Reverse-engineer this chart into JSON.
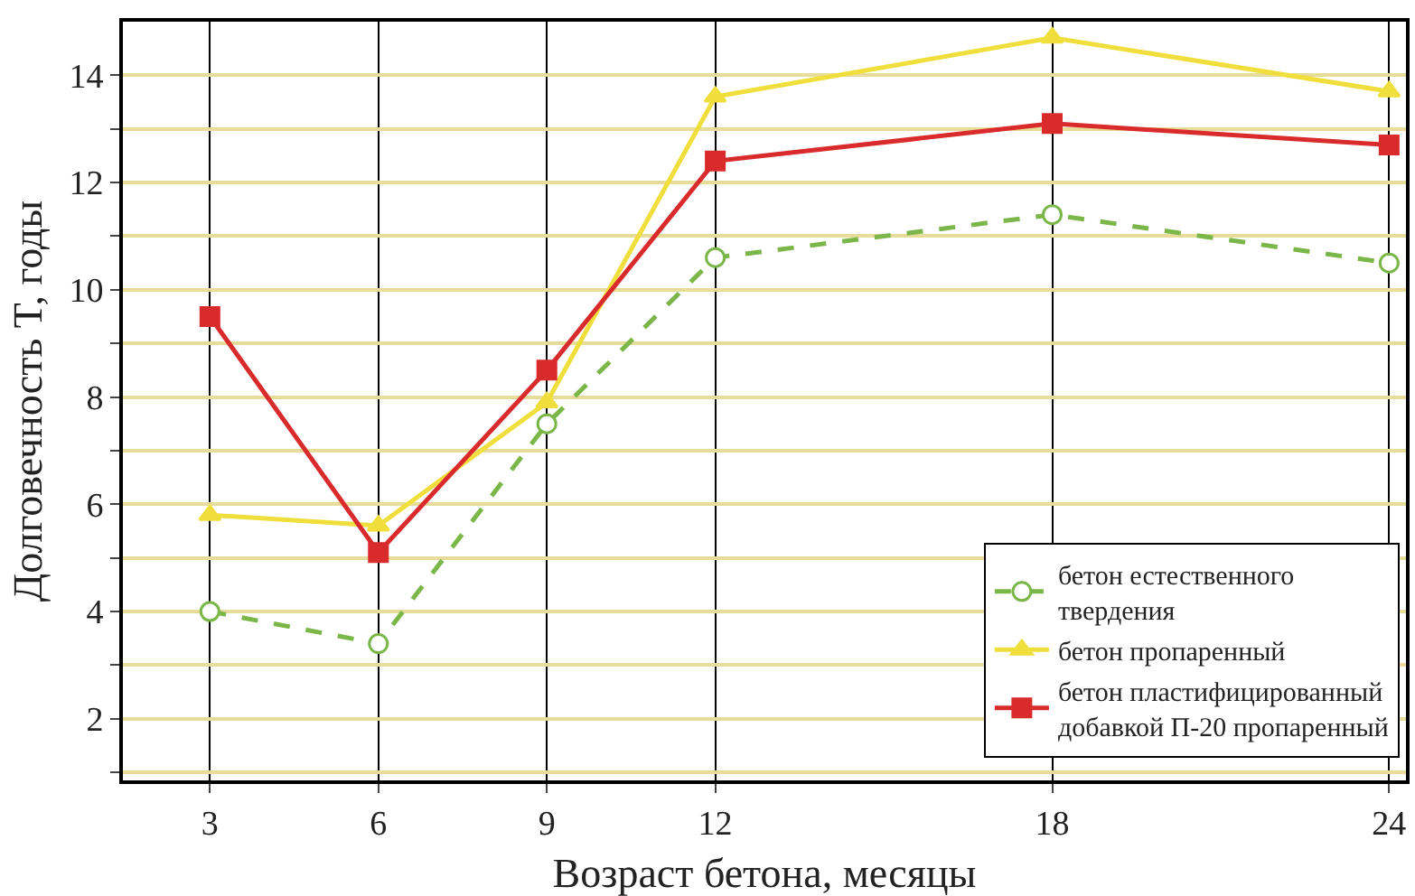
{
  "chart_data": {
    "type": "line",
    "xlabel": "Возраст бетона, месяцы",
    "ylabel": "Долговечность T, годы",
    "x": [
      3,
      6,
      9,
      12,
      18,
      24
    ],
    "xlim": [
      1.45,
      24.3
    ],
    "xticks": [
      3,
      6,
      9,
      12,
      18,
      24
    ],
    "ylim": [
      0.85,
      15
    ],
    "yticks": [
      {
        "value": 1,
        "label": null
      },
      2,
      {
        "value": 3,
        "label": null
      },
      4,
      {
        "value": 5,
        "label": null
      },
      6,
      {
        "value": 7,
        "label": null
      },
      8,
      {
        "value": 9,
        "label": null
      },
      10,
      {
        "value": 11,
        "label": null
      },
      12,
      {
        "value": 13,
        "label": null
      },
      14
    ],
    "grid": true,
    "legend": "bottom right",
    "series": [
      {
        "name": "бетон естественного\nтвердения",
        "color": "#7ab648",
        "marker": "circle",
        "line_style": "dashed",
        "values": [
          4.0,
          3.4,
          7.5,
          10.6,
          11.4,
          10.5
        ]
      },
      {
        "name": "бетон пропаренный",
        "color": "#f0de3c",
        "marker": "triangle",
        "line_style": "solid",
        "values": [
          5.8,
          5.6,
          7.9,
          13.6,
          14.7,
          13.7
        ]
      },
      {
        "name": "бетон пластифицированный\nдобавкой П-20 пропаренный",
        "color": "#d92b2b",
        "marker": "square",
        "line_style": "solid",
        "values": [
          9.5,
          5.1,
          8.5,
          12.4,
          13.1,
          12.7
        ]
      }
    ]
  }
}
